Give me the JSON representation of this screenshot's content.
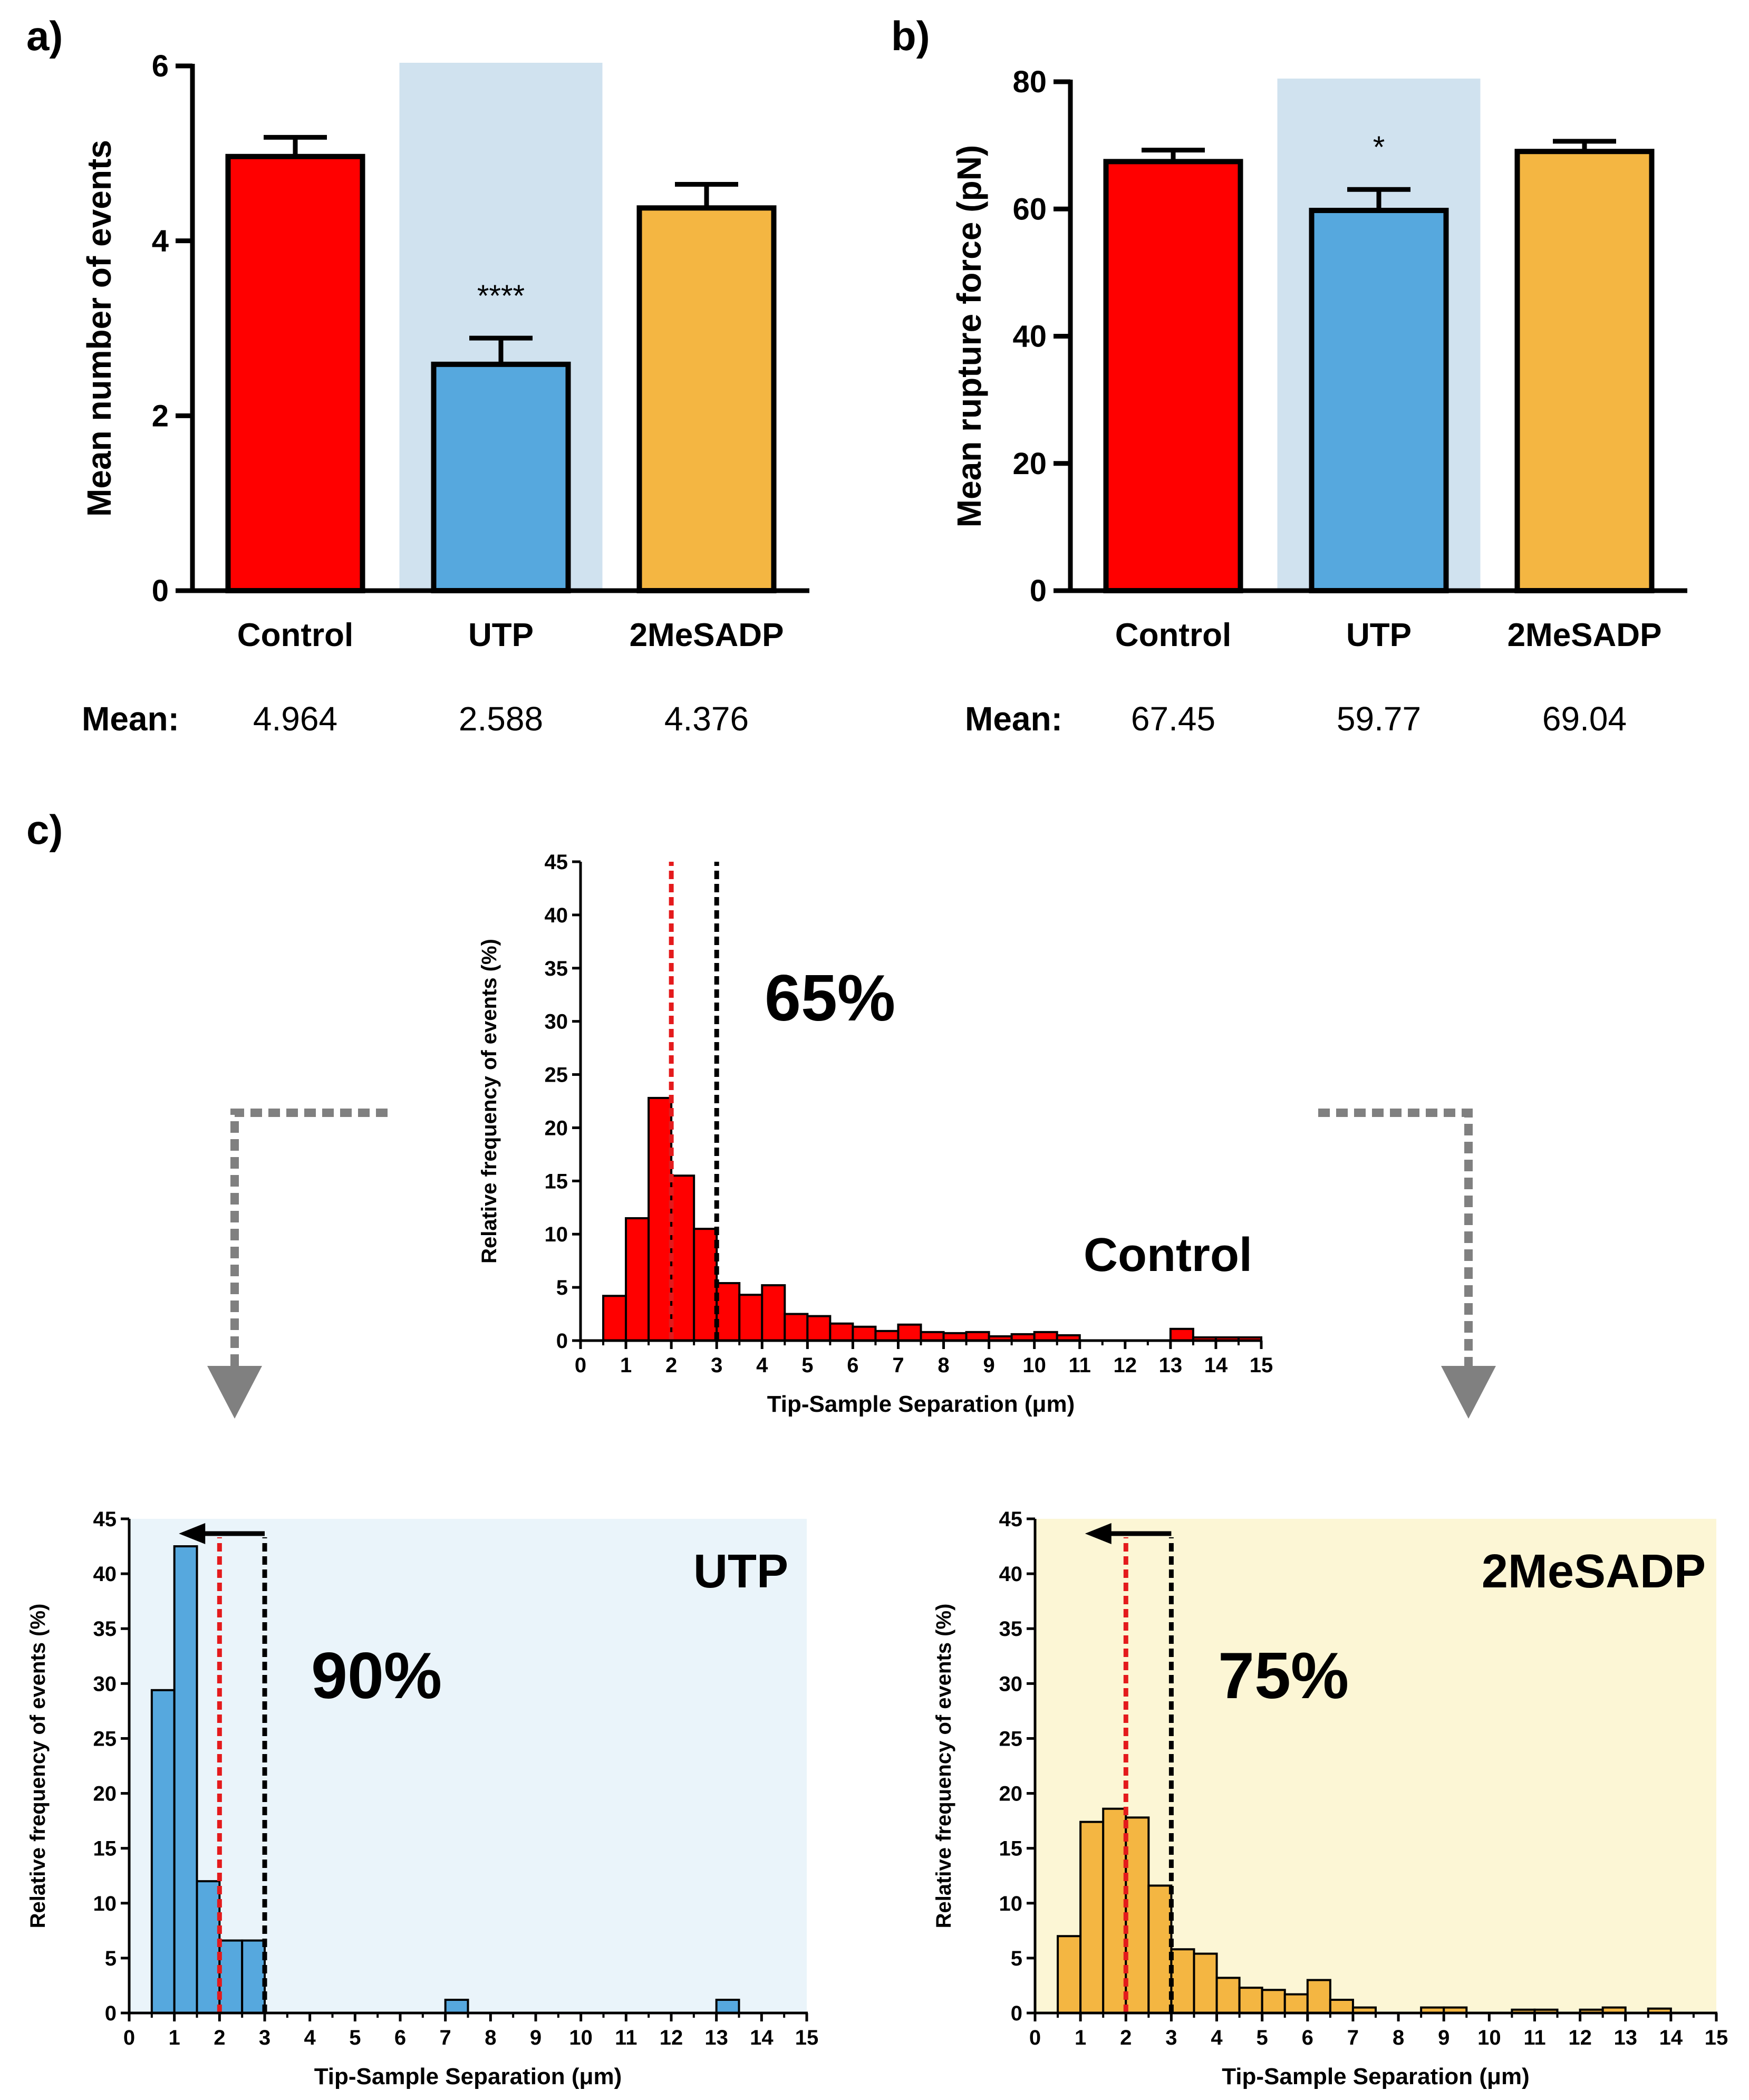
{
  "colors": {
    "control": "#ff0000",
    "utp": "#56a8de",
    "mesadp": "#f4b642",
    "highlight_bar": "#d0e2ef",
    "utp_bg": "#eaf4fa",
    "mesadp_bg": "#fcf6d5",
    "median_line": "#e41a1c",
    "threshold_line": "#000000",
    "arrow_gray": "#808080"
  },
  "panel_labels": {
    "a": "a)",
    "b": "b)",
    "c": "c)"
  },
  "mean_label": "Mean:",
  "chart_data": [
    {
      "id": "a",
      "type": "bar",
      "categories": [
        "Control",
        "UTP",
        "2MeSADP"
      ],
      "values": [
        4.964,
        2.588,
        4.376
      ],
      "errors": [
        0.22,
        0.3,
        0.27
      ],
      "ylabel": "Mean number of events",
      "ylim": [
        0,
        6
      ],
      "yticks": [
        0,
        2,
        4,
        6
      ],
      "highlight_category": "UTP",
      "annotations": [
        {
          "category": "UTP",
          "text": "****"
        }
      ],
      "means": [
        "4.964",
        "2.588",
        "4.376"
      ]
    },
    {
      "id": "b",
      "type": "bar",
      "categories": [
        "Control",
        "UTP",
        "2MeSADP"
      ],
      "values": [
        67.45,
        59.77,
        69.04
      ],
      "errors": [
        1.8,
        3.3,
        1.6
      ],
      "ylabel": "Mean rupture force (pN)",
      "ylim": [
        0,
        80
      ],
      "yticks": [
        0,
        20,
        40,
        60,
        80
      ],
      "highlight_category": "UTP",
      "annotations": [
        {
          "category": "UTP",
          "text": "*"
        }
      ],
      "means": [
        "67.45",
        "59.77",
        "69.04"
      ]
    },
    {
      "id": "c-control",
      "type": "bar",
      "subtype": "histogram",
      "title": "Control",
      "percent_label": "65%",
      "bin_width": 0.5,
      "bin_start": 0.5,
      "values": [
        4.2,
        11.5,
        22.8,
        15.5,
        10.5,
        5.4,
        4.3,
        5.2,
        2.5,
        2.3,
        1.6,
        1.3,
        0.9,
        1.5,
        0.8,
        0.7,
        0.8,
        0.4,
        0.6,
        0.8,
        0.5,
        0,
        0,
        0,
        0,
        1.1,
        0.3,
        0.3,
        0.3
      ],
      "xlabel": "Tip-Sample Separation (μm)",
      "ylabel": "Relative frequency of events (%)",
      "xlim": [
        0,
        15
      ],
      "ylim": [
        0,
        45
      ],
      "xticks": [
        "0",
        "1",
        "2",
        "3",
        "4",
        "5",
        "6",
        "7",
        "8",
        "9",
        "10",
        "11",
        "12",
        "13",
        "14",
        "15"
      ],
      "yticks": [
        "0",
        "5",
        "10",
        "15",
        "20",
        "25",
        "30",
        "35",
        "40",
        "45"
      ],
      "median_line_x": 2,
      "threshold_line_x": 3
    },
    {
      "id": "c-utp",
      "type": "bar",
      "subtype": "histogram",
      "title": "UTP",
      "percent_label": "90%",
      "bin_width": 0.5,
      "bin_start": 0.5,
      "values": [
        29.4,
        42.5,
        12.0,
        6.6,
        6.6,
        0,
        0,
        0,
        0,
        0,
        0,
        0,
        0,
        1.2,
        0,
        0,
        0,
        0,
        0,
        0,
        0,
        0,
        0,
        0,
        0,
        1.2
      ],
      "xlabel": "Tip-Sample Separation (μm)",
      "ylabel": "Relative frequency of events (%)",
      "xlim": [
        0,
        15
      ],
      "ylim": [
        0,
        45
      ],
      "xticks": [
        "0",
        "1",
        "2",
        "3",
        "4",
        "5",
        "6",
        "7",
        "8",
        "9",
        "10",
        "11",
        "12",
        "13",
        "14",
        "15"
      ],
      "yticks": [
        "0",
        "5",
        "10",
        "15",
        "20",
        "25",
        "30",
        "35",
        "40",
        "45"
      ],
      "median_line_x": 2,
      "threshold_line_x": 3,
      "arrow_from_x": 3,
      "arrow_to_x": 1.1
    },
    {
      "id": "c-2mesadp",
      "type": "bar",
      "subtype": "histogram",
      "title": "2MeSADP",
      "percent_label": "75%",
      "bin_width": 0.5,
      "bin_start": 0.5,
      "values": [
        7.0,
        17.4,
        18.6,
        17.8,
        11.6,
        5.8,
        5.4,
        3.2,
        2.3,
        2.1,
        1.7,
        3.0,
        1.2,
        0.5,
        0,
        0,
        0.5,
        0.5,
        0,
        0,
        0.3,
        0.3,
        0,
        0.3,
        0.5,
        0,
        0.4
      ],
      "xlabel": "Tip-Sample Separation (μm)",
      "ylabel": "Relative frequency of events (%)",
      "xlim": [
        0,
        15
      ],
      "ylim": [
        0,
        45
      ],
      "xticks": [
        "0",
        "1",
        "2",
        "3",
        "4",
        "5",
        "6",
        "7",
        "8",
        "9",
        "10",
        "11",
        "12",
        "13",
        "14",
        "15"
      ],
      "yticks": [
        "0",
        "5",
        "10",
        "15",
        "20",
        "25",
        "30",
        "35",
        "40",
        "45"
      ],
      "median_line_x": 2,
      "threshold_line_x": 3,
      "arrow_from_x": 3,
      "arrow_to_x": 1.1
    }
  ]
}
